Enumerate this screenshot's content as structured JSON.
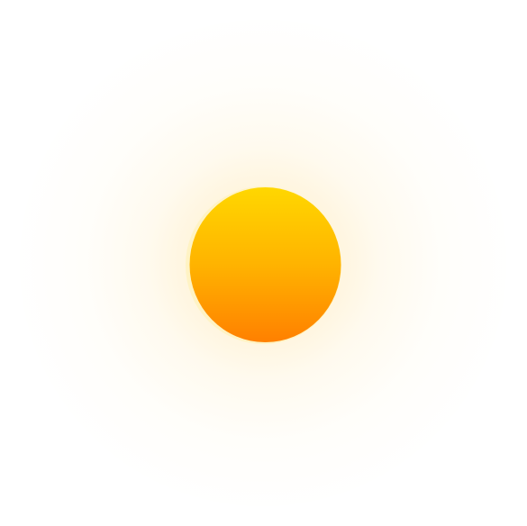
{
  "scene": {
    "background_color": "#ffffff",
    "icon": "sun-icon",
    "sun": {
      "gradient_top_color": "#ffd700",
      "gradient_mid_color": "#ffb300",
      "gradient_bottom_color": "#ff8000",
      "rim_color": "#fff3c4",
      "glow_color": "#ffd678"
    }
  }
}
